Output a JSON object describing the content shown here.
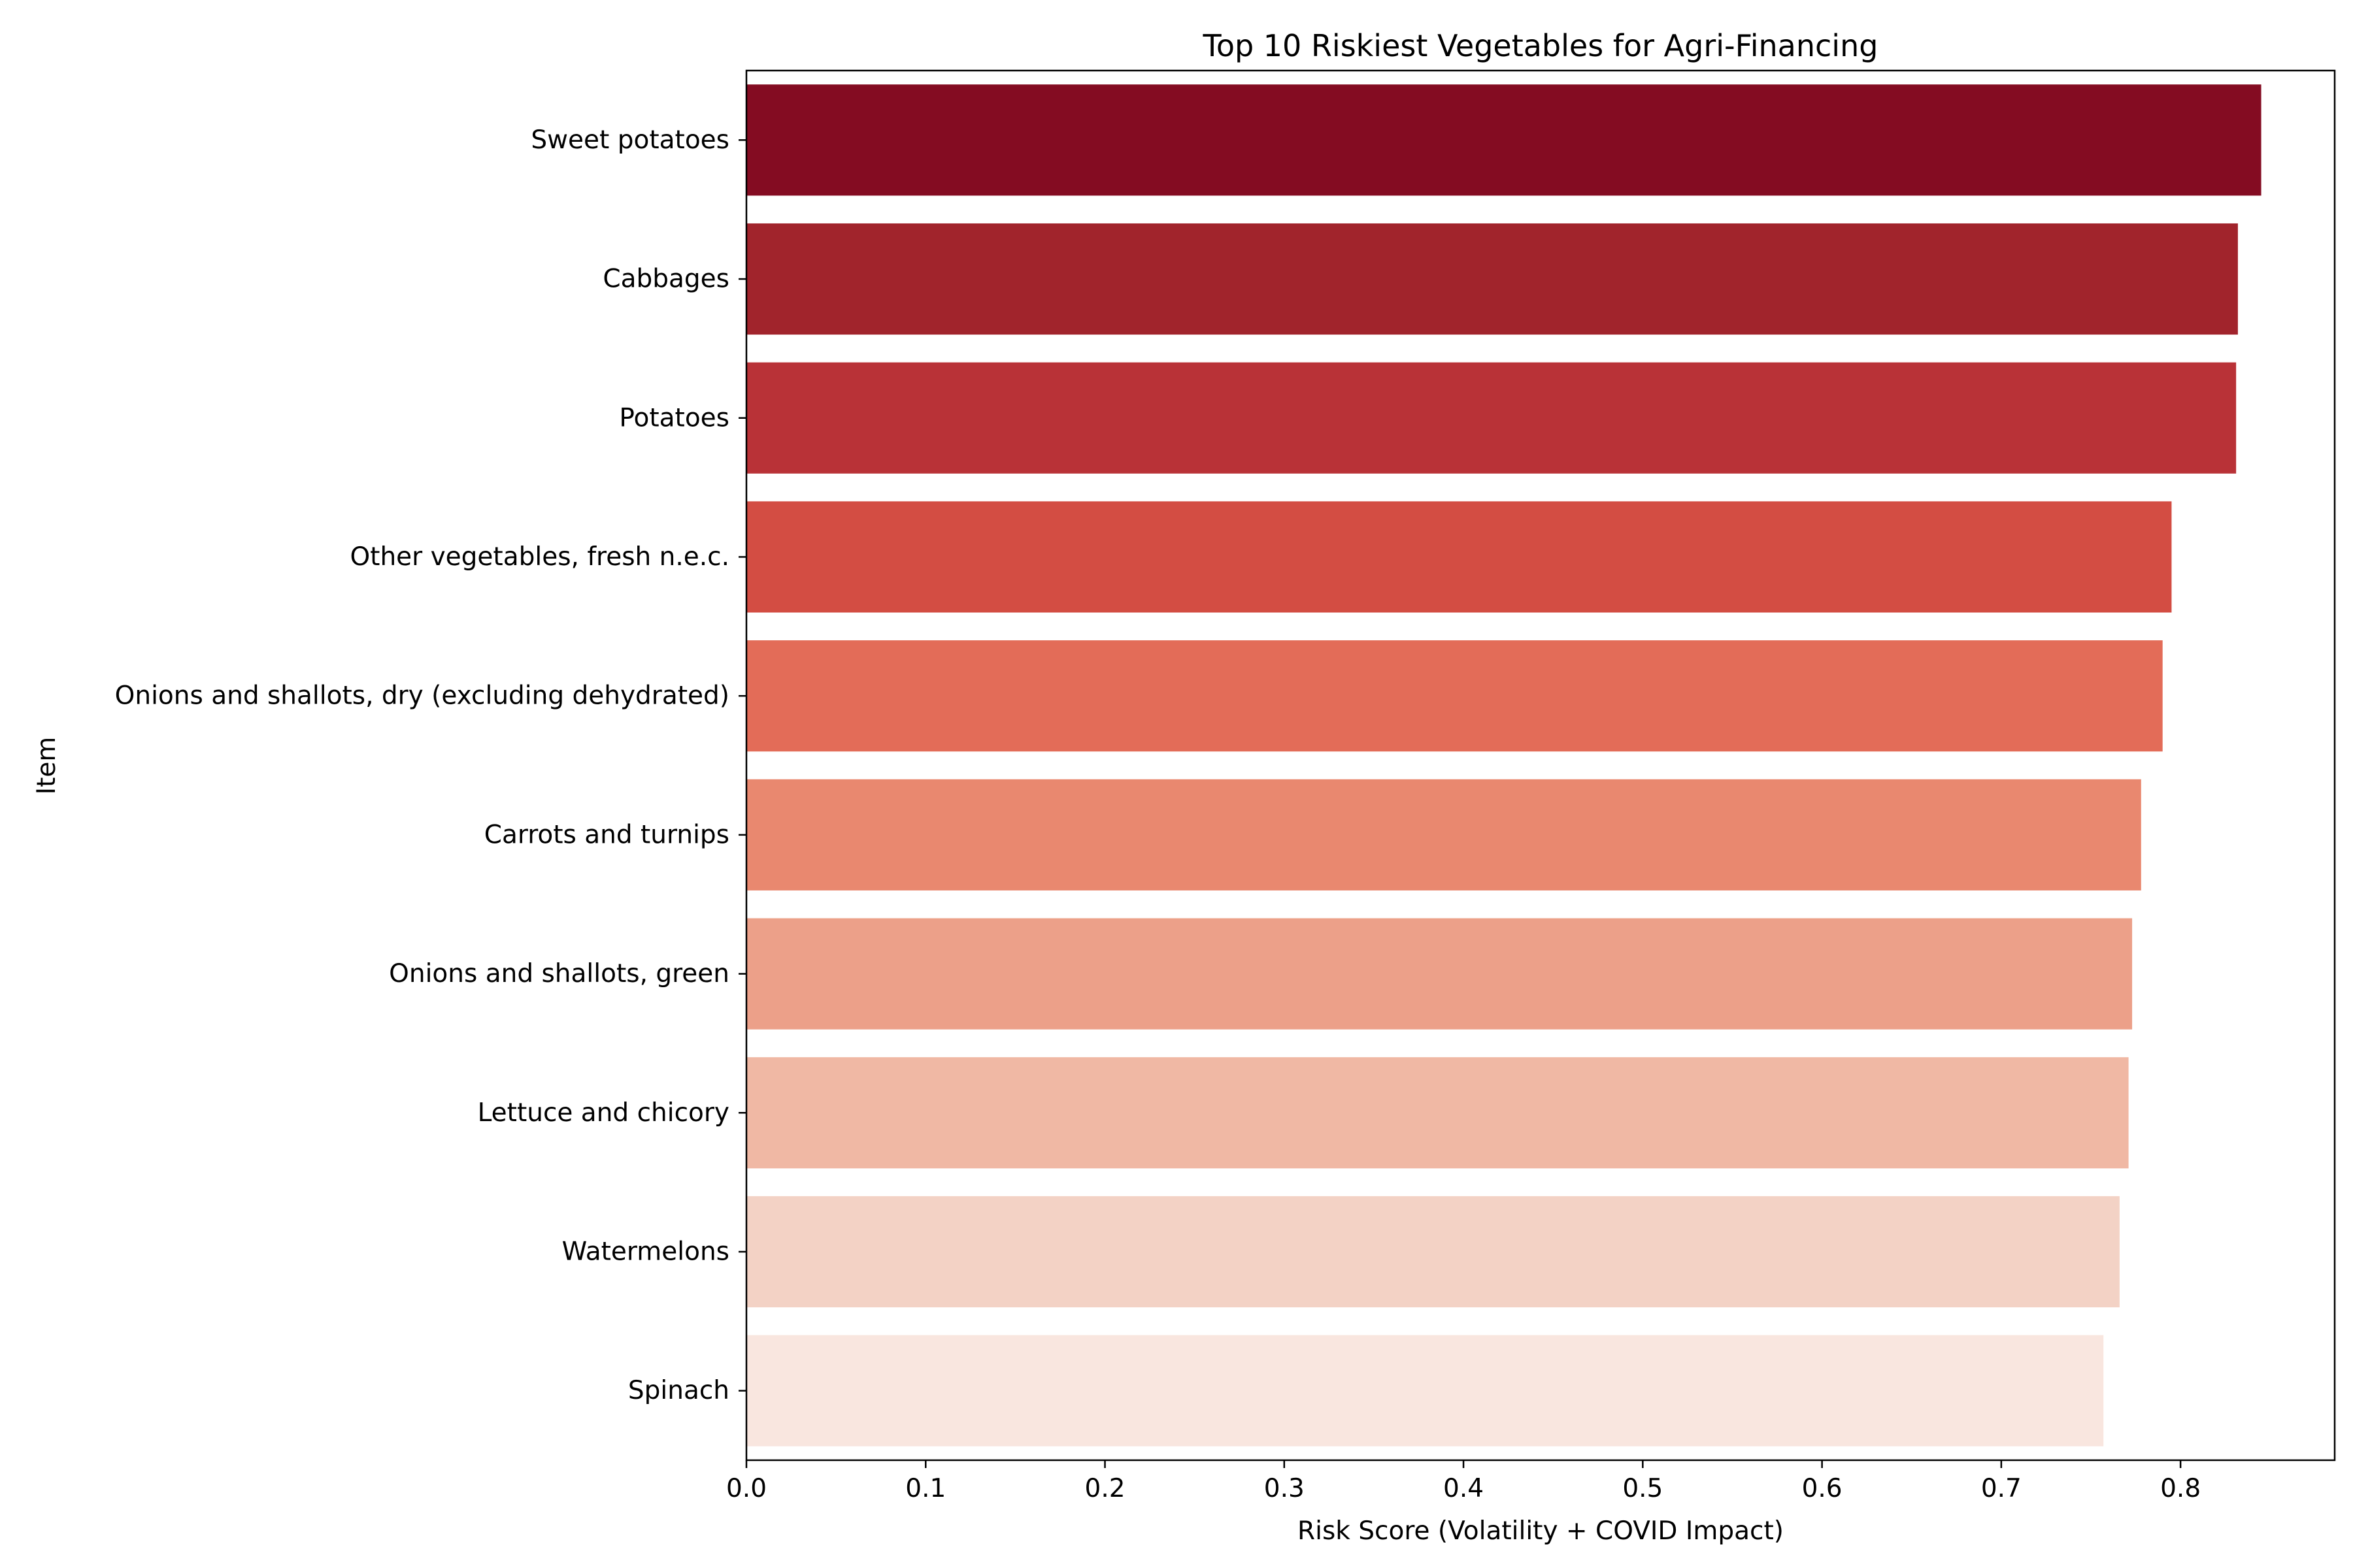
{
  "chart_data": {
    "type": "bar",
    "orientation": "horizontal",
    "title": "Top 10 Riskiest Vegetables for Agri-Financing",
    "xlabel": "Risk Score (Volatility + COVID Impact)",
    "ylabel": "Item",
    "categories": [
      "Sweet potatoes",
      "Cabbages",
      "Potatoes",
      "Other vegetables, fresh n.e.c.",
      "Onions and shallots, dry (excluding dehydrated)",
      "Carrots and turnips",
      "Onions and shallots, green",
      "Lettuce and chicory",
      "Watermelons",
      "Spinach"
    ],
    "values": [
      0.845,
      0.832,
      0.831,
      0.795,
      0.79,
      0.778,
      0.773,
      0.771,
      0.766,
      0.757
    ],
    "colors": [
      "#840c22",
      "#a1242c",
      "#b93237",
      "#d34d43",
      "#e36c58",
      "#e9886f",
      "#eca089",
      "#f0b8a4",
      "#f3d2c5",
      "#f9e6df"
    ],
    "xlim": [
      0,
      0.886
    ],
    "xticks": [
      "0.0",
      "0.1",
      "0.2",
      "0.3",
      "0.4",
      "0.5",
      "0.6",
      "0.7",
      "0.8"
    ],
    "xtick_values": [
      0,
      0.1,
      0.2,
      0.3,
      0.4,
      0.5,
      0.6,
      0.7,
      0.8
    ],
    "grid": false,
    "legend": "none"
  }
}
